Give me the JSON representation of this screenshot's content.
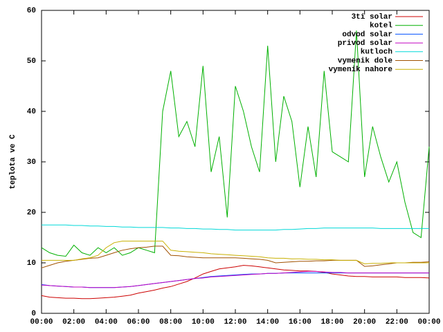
{
  "chart_data": {
    "type": "line",
    "ylabel": "teplota ve C",
    "x": [
      0,
      0.5,
      1,
      1.5,
      2,
      2.5,
      3,
      3.5,
      4,
      4.5,
      5,
      5.5,
      6,
      6.5,
      7,
      7.5,
      8,
      8.5,
      9,
      9.5,
      10,
      10.5,
      11,
      11.5,
      12,
      12.5,
      13,
      13.5,
      14,
      14.5,
      15,
      15.5,
      16,
      16.5,
      17,
      17.5,
      18,
      18.5,
      19,
      19.5,
      20,
      20.5,
      21,
      21.5,
      22,
      22.5,
      23,
      23.5,
      24
    ],
    "xlim": [
      0,
      24
    ],
    "xticks": [
      {
        "value": 0,
        "label": "00:00"
      },
      {
        "value": 2,
        "label": "02:00"
      },
      {
        "value": 4,
        "label": "04:00"
      },
      {
        "value": 6,
        "label": "06:00"
      },
      {
        "value": 8,
        "label": "08:00"
      },
      {
        "value": 10,
        "label": "10:00"
      },
      {
        "value": 12,
        "label": "12:00"
      },
      {
        "value": 14,
        "label": "14:00"
      },
      {
        "value": 16,
        "label": "16:00"
      },
      {
        "value": 18,
        "label": "18:00"
      },
      {
        "value": 20,
        "label": "20:00"
      },
      {
        "value": 22,
        "label": "22:00"
      },
      {
        "value": 24,
        "label": "00:00"
      }
    ],
    "ylim": [
      0,
      60
    ],
    "yticks": [
      0,
      10,
      20,
      30,
      40,
      50,
      60
    ],
    "legend": "top-right",
    "series": [
      {
        "name": "3ti solar",
        "color": "#cc0000",
        "values": [
          3.5,
          3.2,
          3.1,
          3,
          3,
          2.9,
          2.9,
          3,
          3.1,
          3.2,
          3.4,
          3.6,
          4,
          4.3,
          4.6,
          5,
          5.3,
          5.8,
          6.3,
          7,
          7.8,
          8.3,
          8.8,
          9,
          9.2,
          9.5,
          9.4,
          9.2,
          9,
          8.8,
          8.6,
          8.5,
          8.4,
          8.4,
          8.3,
          8.1,
          7.8,
          7.6,
          7.4,
          7.3,
          7.3,
          7.2,
          7.2,
          7.2,
          7.2,
          7.1,
          7.1,
          7.1,
          7
        ]
      },
      {
        "name": "kotel",
        "color": "#00b000",
        "values": [
          13,
          12,
          11.5,
          11.3,
          13.5,
          12,
          11.5,
          13,
          12,
          13,
          11.5,
          12,
          13,
          12.5,
          12,
          40,
          48,
          35,
          38,
          33,
          49,
          28,
          35,
          19,
          45,
          40,
          33,
          28,
          53,
          30,
          43,
          38,
          25,
          37,
          27,
          48,
          32,
          31,
          30,
          56,
          27,
          37,
          31,
          26,
          30,
          22,
          16,
          15,
          33
        ]
      },
      {
        "name": "odvod solar",
        "color": "#0050ff",
        "values": [
          5.7,
          5.5,
          5.4,
          5.3,
          5.2,
          5.2,
          5.1,
          5.1,
          5.1,
          5.1,
          5.2,
          5.3,
          5.5,
          5.7,
          5.9,
          6.1,
          6.3,
          6.5,
          6.7,
          6.9,
          7.1,
          7.3,
          7.4,
          7.5,
          7.6,
          7.7,
          7.8,
          7.8,
          7.9,
          7.9,
          8,
          8,
          8,
          8,
          8,
          8,
          8,
          8,
          8,
          8,
          8,
          8,
          8,
          8,
          8,
          8,
          8,
          8,
          8
        ]
      },
      {
        "name": "privod solar",
        "color": "#c000c0",
        "values": [
          5.6,
          5.5,
          5.4,
          5.3,
          5.2,
          5.2,
          5.1,
          5.1,
          5.1,
          5.1,
          5.2,
          5.3,
          5.5,
          5.7,
          5.9,
          6.1,
          6.3,
          6.5,
          6.7,
          6.9,
          7,
          7.2,
          7.3,
          7.4,
          7.5,
          7.6,
          7.7,
          7.8,
          7.9,
          7.9,
          8,
          8.1,
          8.2,
          8.3,
          8.3,
          8.2,
          8.1,
          8.1,
          8,
          8,
          8,
          8,
          8,
          8,
          8,
          8,
          8,
          8,
          8
        ]
      },
      {
        "name": "kutloch",
        "color": "#00d8d8",
        "values": [
          17.5,
          17.5,
          17.5,
          17.5,
          17.4,
          17.4,
          17.3,
          17.3,
          17.2,
          17.2,
          17.1,
          17.1,
          17,
          17,
          17,
          17,
          16.9,
          16.9,
          16.8,
          16.8,
          16.7,
          16.7,
          16.6,
          16.6,
          16.5,
          16.5,
          16.5,
          16.5,
          16.5,
          16.5,
          16.6,
          16.6,
          16.7,
          16.8,
          16.8,
          16.9,
          16.9,
          16.9,
          16.9,
          16.9,
          16.9,
          16.9,
          16.8,
          16.8,
          16.8,
          16.8,
          16.8,
          16.8,
          16.8
        ]
      },
      {
        "name": "vymenik dole",
        "color": "#a05000",
        "values": [
          9,
          9.5,
          10,
          10.3,
          10.5,
          10.7,
          10.9,
          11,
          11.5,
          12,
          12.5,
          12.8,
          13,
          13.1,
          13.3,
          13.3,
          11.5,
          11.4,
          11.2,
          11.1,
          11,
          11,
          11,
          11,
          11,
          10.9,
          10.8,
          10.7,
          10.5,
          10,
          10.1,
          10.2,
          10.3,
          10.3,
          10.4,
          10.4,
          10.5,
          10.5,
          10.5,
          10.5,
          9.3,
          9.4,
          9.6,
          9.8,
          10,
          10,
          10.1,
          10.1,
          10.2
        ]
      },
      {
        "name": "vymenik nahore",
        "color": "#c8b000",
        "values": [
          10.5,
          10.5,
          10.5,
          10.5,
          10.5,
          10.8,
          11,
          11.5,
          13,
          14,
          14.3,
          14.3,
          14.3,
          14.3,
          14.3,
          14.3,
          12.5,
          12.3,
          12.2,
          12.1,
          12,
          11.8,
          11.7,
          11.6,
          11.5,
          11.4,
          11.3,
          11.2,
          11,
          10.9,
          10.9,
          10.8,
          10.8,
          10.7,
          10.7,
          10.6,
          10.6,
          10.5,
          10.5,
          10.5,
          9.8,
          9.9,
          9.9,
          10,
          10,
          10,
          10,
          10,
          10
        ]
      }
    ]
  }
}
